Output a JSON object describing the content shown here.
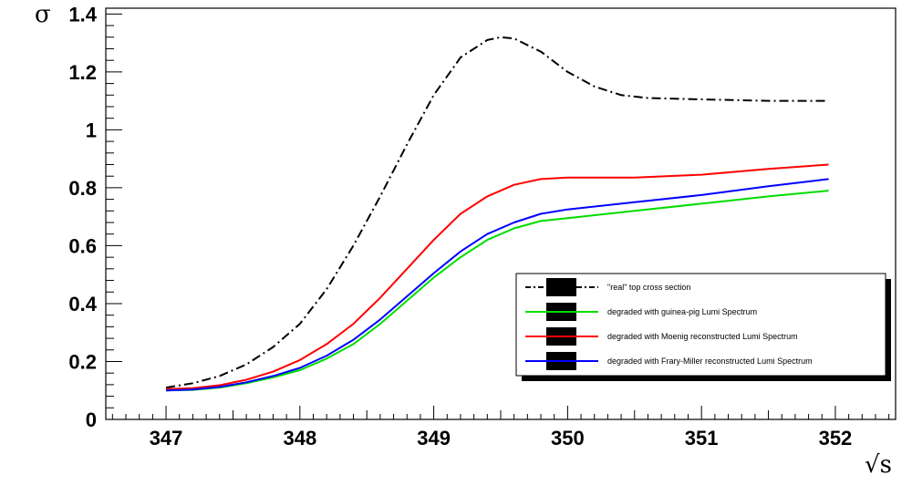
{
  "chart_data": {
    "type": "line",
    "title": "",
    "xlabel": "√s",
    "ylabel": "σ",
    "xlim": [
      346.55,
      352.45
    ],
    "ylim": [
      0,
      1.42
    ],
    "xticks": [
      347,
      348,
      349,
      350,
      351,
      352
    ],
    "xtick_labels": [
      "347",
      "348",
      "349",
      "350",
      "351",
      "352"
    ],
    "yticks": [
      0,
      0.2,
      0.4,
      0.6,
      0.8,
      1,
      1.2,
      1.4
    ],
    "ytick_labels": [
      "0",
      "0.2",
      "0.4",
      "0.6",
      "0.8",
      "1",
      "1.2",
      "1.4"
    ],
    "grid": false,
    "legend_position": "lower-right",
    "series": [
      {
        "name": "\"real\" top cross section",
        "color": "#000000",
        "style": "dash-dot",
        "points": [
          [
            347.0,
            0.11
          ],
          [
            347.2,
            0.125
          ],
          [
            347.4,
            0.15
          ],
          [
            347.6,
            0.19
          ],
          [
            347.8,
            0.25
          ],
          [
            348.0,
            0.33
          ],
          [
            348.2,
            0.45
          ],
          [
            348.4,
            0.6
          ],
          [
            348.6,
            0.77
          ],
          [
            348.8,
            0.95
          ],
          [
            349.0,
            1.12
          ],
          [
            349.2,
            1.25
          ],
          [
            349.4,
            1.31
          ],
          [
            349.5,
            1.32
          ],
          [
            349.6,
            1.315
          ],
          [
            349.8,
            1.27
          ],
          [
            350.0,
            1.2
          ],
          [
            350.2,
            1.15
          ],
          [
            350.4,
            1.12
          ],
          [
            350.6,
            1.11
          ],
          [
            351.0,
            1.105
          ],
          [
            351.5,
            1.1
          ],
          [
            351.95,
            1.1
          ]
        ]
      },
      {
        "name": "degraded with guinea-pig Lumi Spectrum",
        "color": "#00dd00",
        "style": "solid",
        "points": [
          [
            347.0,
            0.1
          ],
          [
            347.2,
            0.102
          ],
          [
            347.4,
            0.11
          ],
          [
            347.6,
            0.125
          ],
          [
            347.8,
            0.145
          ],
          [
            348.0,
            0.17
          ],
          [
            348.2,
            0.21
          ],
          [
            348.4,
            0.26
          ],
          [
            348.6,
            0.33
          ],
          [
            348.8,
            0.41
          ],
          [
            349.0,
            0.49
          ],
          [
            349.2,
            0.56
          ],
          [
            349.4,
            0.62
          ],
          [
            349.6,
            0.66
          ],
          [
            349.8,
            0.685
          ],
          [
            350.0,
            0.695
          ],
          [
            350.5,
            0.72
          ],
          [
            351.0,
            0.745
          ],
          [
            351.5,
            0.77
          ],
          [
            351.95,
            0.79
          ]
        ]
      },
      {
        "name": "degraded with Moenig reconstructed Lumi Spectrum",
        "color": "#ff0000",
        "style": "solid",
        "points": [
          [
            347.0,
            0.105
          ],
          [
            347.2,
            0.108
          ],
          [
            347.4,
            0.118
          ],
          [
            347.6,
            0.137
          ],
          [
            347.8,
            0.165
          ],
          [
            348.0,
            0.205
          ],
          [
            348.2,
            0.26
          ],
          [
            348.4,
            0.33
          ],
          [
            348.6,
            0.42
          ],
          [
            348.8,
            0.52
          ],
          [
            349.0,
            0.62
          ],
          [
            349.2,
            0.71
          ],
          [
            349.4,
            0.77
          ],
          [
            349.6,
            0.81
          ],
          [
            349.8,
            0.83
          ],
          [
            350.0,
            0.835
          ],
          [
            350.5,
            0.835
          ],
          [
            351.0,
            0.845
          ],
          [
            351.5,
            0.865
          ],
          [
            351.95,
            0.88
          ]
        ]
      },
      {
        "name": "degraded with Frary-Miller reconstructed Lumi Spectrum",
        "color": "#0000ff",
        "style": "solid",
        "points": [
          [
            347.0,
            0.1
          ],
          [
            347.2,
            0.103
          ],
          [
            347.4,
            0.112
          ],
          [
            347.6,
            0.128
          ],
          [
            347.8,
            0.15
          ],
          [
            348.0,
            0.178
          ],
          [
            348.2,
            0.22
          ],
          [
            348.4,
            0.275
          ],
          [
            348.6,
            0.345
          ],
          [
            348.8,
            0.425
          ],
          [
            349.0,
            0.505
          ],
          [
            349.2,
            0.58
          ],
          [
            349.4,
            0.64
          ],
          [
            349.6,
            0.68
          ],
          [
            349.8,
            0.71
          ],
          [
            350.0,
            0.725
          ],
          [
            350.5,
            0.75
          ],
          [
            351.0,
            0.775
          ],
          [
            351.5,
            0.805
          ],
          [
            351.95,
            0.83
          ]
        ]
      }
    ]
  }
}
